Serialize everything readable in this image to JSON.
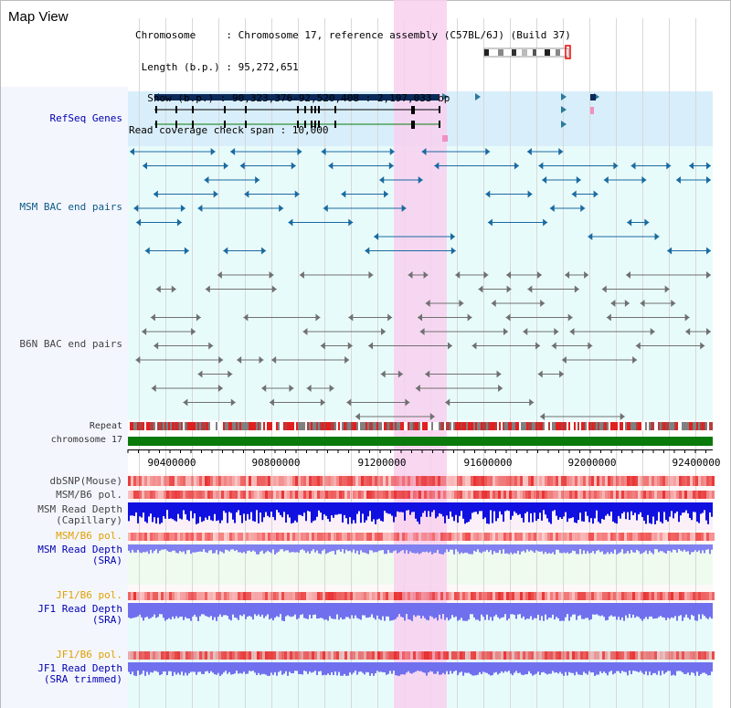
{
  "view_title": "Map View",
  "info": {
    "chromosome_line": "Chromosome     : Chromosome 17, reference assembly (C57BL/6J) (Build 37)",
    "length_line": " Length (b.p.) : 95,272,651",
    "show_line": "  Show (b.p.) : 90,323,376-92,520,408 : 2,197,033 bp",
    "span_line": "Read coverage check span : 10,000"
  },
  "tracks": {
    "refseq": "RefSeq Genes",
    "msm_bac": "MSM BAC end pairs",
    "b6n_bac": "B6N BAC end pairs",
    "repeat": "Repeat",
    "chromosome": "chromosome 17",
    "dbsnp": "dbSNP(Mouse)",
    "msm_b6_pol_1": "MSM/B6 pol.",
    "msm_read_depth_cap": "MSM Read Depth\n(Capillary)",
    "msm_b6_pol_2": "MSM/B6 pol.",
    "msm_read_depth_sra": "MSM Read Depth\n(SRA)",
    "jf1_b6_pol_1": "JF1/B6 pol.",
    "jf1_read_depth_sra": "JF1 Read Depth\n(SRA)",
    "jf1_b6_pol_2": "JF1/B6 pol.",
    "jf1_read_depth_trim": "JF1 Read Depth\n(SRA trimmed)"
  },
  "axis": {
    "ticks": [
      "90400000",
      "90800000",
      "91200000",
      "91600000",
      "92000000",
      "92400000"
    ]
  },
  "colors": {
    "highlight": "#f8d0ee",
    "refseq_bg": "#d8eefa",
    "cyan_bg": "#e8fbfb",
    "msm_bac": "#1a6aa0",
    "b6n_bac": "#707070",
    "chromosome_bar": "#0a7a0a",
    "depth_dark": "#1010e0",
    "depth_light": "#8080f0",
    "label_orange": "#e0a000",
    "label_blue": "#0000b0"
  }
}
